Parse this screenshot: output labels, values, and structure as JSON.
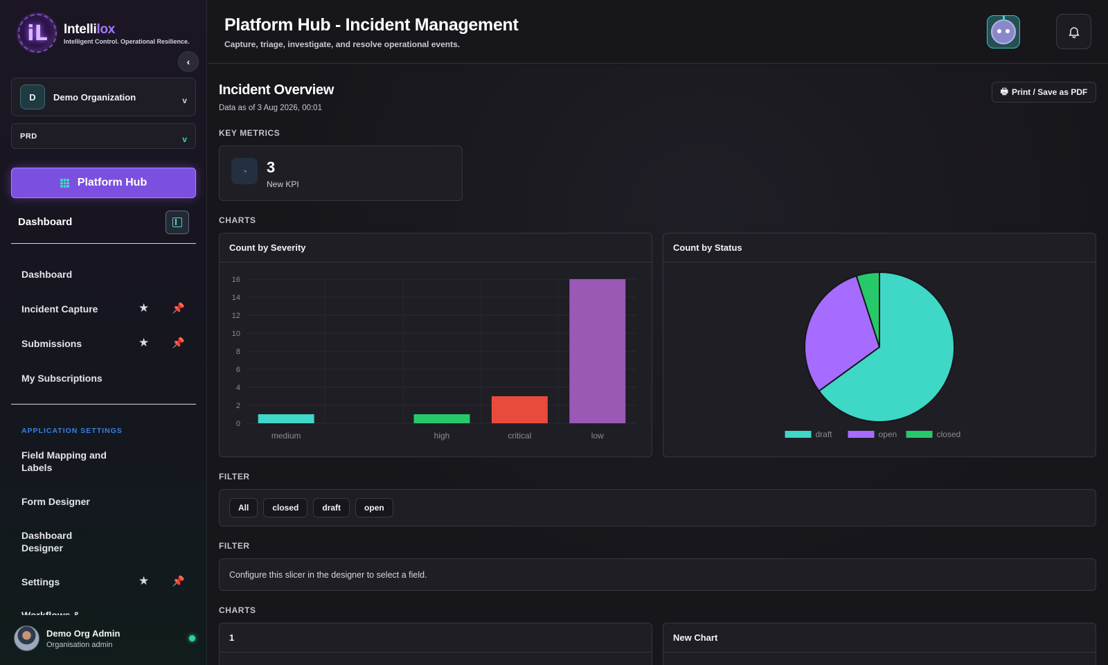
{
  "brand": {
    "logo_letters": "iL",
    "name_main": "Intelli",
    "name_accent": "lox",
    "tagline": "Intelligent Control. Operational Resilience."
  },
  "sidebar": {
    "collapse_icon": "chevron-left-icon",
    "collapse_glyph": "‹",
    "org": {
      "avatar_letter": "D",
      "name": "Demo Organization",
      "chevron": "v"
    },
    "env": {
      "name": "PRD",
      "chevron": "v"
    },
    "hub_button": "Platform Hub",
    "section_title": "Dashboard",
    "nav": [
      {
        "label": "Dashboard"
      },
      {
        "label": "Incident Capture",
        "star": "★",
        "pin": "📌"
      },
      {
        "label": "Submissions",
        "star": "★",
        "pin": "📌"
      },
      {
        "label": "My Subscriptions"
      }
    ],
    "app_settings_label": "APPLICATION SETTINGS",
    "settings_nav": [
      {
        "label_line1": "Field Mapping and",
        "label_line2": "Labels"
      },
      {
        "label_line1": "Form Designer"
      },
      {
        "label_line1": "Dashboard",
        "label_line2": "Designer"
      },
      {
        "label_line1": "Settings",
        "star": "★",
        "pin": "📌"
      },
      {
        "label_line1": "Workflows &"
      }
    ],
    "user": {
      "name": "Demo Org Admin",
      "role": "Organisation admin",
      "status_color": "#2fd39a"
    }
  },
  "header": {
    "title": "Platform Hub - Incident Management",
    "subtitle": "Capture, triage, investigate, and resolve operational events."
  },
  "overview": {
    "title": "Incident Overview",
    "date": "Data as of 3 Aug 2026, 00:01",
    "print_label": "Print / Save as PDF",
    "print_icon": "🖶"
  },
  "sections": {
    "key_metrics": "KEY METRICS",
    "charts": "CHARTS",
    "filter1": "FILTER",
    "filter2": "FILTER",
    "charts2": "CHARTS"
  },
  "kpi": {
    "icon": "◔",
    "value": "3",
    "label": "New KPI"
  },
  "filter_chips": [
    "All",
    "closed",
    "draft",
    "open"
  ],
  "slicer_message": "Configure this slicer in the designer to select a field.",
  "bottom_cards": {
    "left_title": "1",
    "right_title": "New Chart"
  },
  "colors": {
    "accent": "#7b4fe0",
    "teal": "#3fd7c6",
    "purple": "#a56cff",
    "green": "#26c96a",
    "red": "#e84b3c"
  },
  "chart_data": [
    {
      "type": "bar",
      "title": "Count by Severity",
      "categories": [
        "medium",
        "",
        "high",
        "critical",
        "low"
      ],
      "values": [
        1,
        0,
        1,
        3,
        16
      ],
      "colors": [
        "#3fd7c6",
        "#3fd7c6",
        "#26c96a",
        "#e84b3c",
        "#9b59b6"
      ],
      "ylim": [
        0,
        16
      ],
      "yticks": [
        0,
        2,
        4,
        6,
        8,
        10,
        12,
        14,
        16
      ],
      "grid": true
    },
    {
      "type": "pie",
      "title": "Count by Status",
      "labels": [
        "draft",
        "open",
        "closed"
      ],
      "values": [
        13,
        6,
        1
      ],
      "colors": [
        "#3fd7c6",
        "#a56cff",
        "#26c96a"
      ],
      "legend": "bottom"
    }
  ]
}
